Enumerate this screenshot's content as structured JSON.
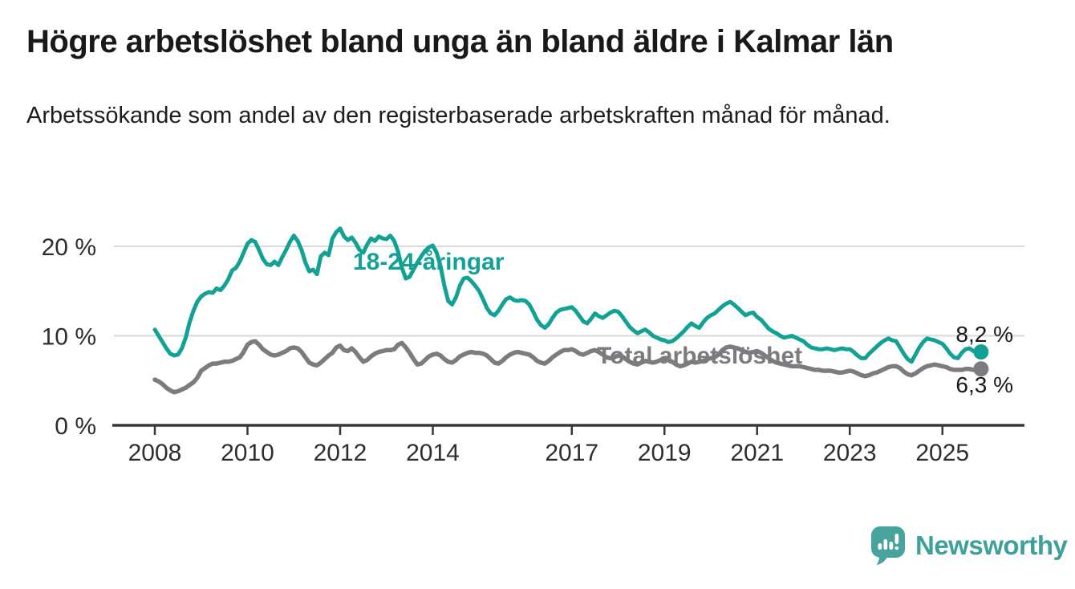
{
  "header": {
    "title": "Högre arbetslöshet bland unga än bland äldre i Kalmar län",
    "subtitle": "Arbetssökande som andel av den registerbaserade arbetskraften månad för månad."
  },
  "branding": {
    "logo_text": "Newsworthy",
    "logo_icon": "bar-chart-speech-bubble-icon",
    "brand_color": "#3da19a"
  },
  "chart_data": {
    "type": "line",
    "title": "Högre arbetslöshet bland unga än bland äldre i Kalmar län",
    "subtitle": "Arbetssökande som andel av den registerbaserade arbetskraften månad för månad.",
    "x_type": "monthly",
    "x_start": "2008-01",
    "x_end": "2025-11",
    "ylim": [
      0,
      22.5
    ],
    "grid": "horizontal",
    "legend_position": "inline-labels",
    "y_ticks": [
      {
        "value": 0,
        "label": "0 %"
      },
      {
        "value": 10,
        "label": "10 %"
      },
      {
        "value": 20,
        "label": "20 %"
      }
    ],
    "x_ticks": [
      {
        "value": 2008,
        "label": "2008"
      },
      {
        "value": 2010,
        "label": "2010"
      },
      {
        "value": 2012,
        "label": "2012"
      },
      {
        "value": 2014,
        "label": "2014"
      },
      {
        "value": 2017,
        "label": "2017"
      },
      {
        "value": 2019,
        "label": "2019"
      },
      {
        "value": 2021,
        "label": "2021"
      },
      {
        "value": 2023,
        "label": "2023"
      },
      {
        "value": 2025,
        "label": "2025"
      }
    ],
    "series": [
      {
        "name": "18-24-åringar",
        "color": "#12a195",
        "end_value": 8.2,
        "end_value_label": "8,2 %",
        "values": [
          10.7,
          10.0,
          9.3,
          8.6,
          8.0,
          7.8,
          7.9,
          8.6,
          9.8,
          11.5,
          12.8,
          13.8,
          14.4,
          14.7,
          14.9,
          14.8,
          15.3,
          15.1,
          15.6,
          16.3,
          17.3,
          17.6,
          18.3,
          19.3,
          20.3,
          20.7,
          20.5,
          19.6,
          18.6,
          18.0,
          17.9,
          18.3,
          17.9,
          18.8,
          19.6,
          20.5,
          21.2,
          20.6,
          19.6,
          18.2,
          17.2,
          17.4,
          16.9,
          18.9,
          19.3,
          19.0,
          20.9,
          21.6,
          22.0,
          21.1,
          20.7,
          21.0,
          20.4,
          19.6,
          19.3,
          20.2,
          20.9,
          20.6,
          21.1,
          20.9,
          20.8,
          21.2,
          20.6,
          19.4,
          17.6,
          16.4,
          16.6,
          17.4,
          18.2,
          18.9,
          19.5,
          19.9,
          20.1,
          19.3,
          17.8,
          15.6,
          13.9,
          13.5,
          14.3,
          15.6,
          16.4,
          16.5,
          16.1,
          15.6,
          15.0,
          14.1,
          13.1,
          12.5,
          12.3,
          12.8,
          13.5,
          14.1,
          14.3,
          14.0,
          13.9,
          14.0,
          13.9,
          13.5,
          12.7,
          11.8,
          11.2,
          10.9,
          11.3,
          12.0,
          12.6,
          12.9,
          13.0,
          13.1,
          13.2,
          12.8,
          12.2,
          11.6,
          11.4,
          11.9,
          12.5,
          12.2,
          12.0,
          12.3,
          12.6,
          12.8,
          12.7,
          12.2,
          11.6,
          11.0,
          10.6,
          10.3,
          10.5,
          10.7,
          10.4,
          10.0,
          9.8,
          9.6,
          9.5,
          9.3,
          9.4,
          9.7,
          10.1,
          10.5,
          11.0,
          11.4,
          11.1,
          10.9,
          11.5,
          12.0,
          12.3,
          12.5,
          12.9,
          13.3,
          13.6,
          13.8,
          13.5,
          13.1,
          12.7,
          12.3,
          12.5,
          12.6,
          12.1,
          11.8,
          11.3,
          10.8,
          10.5,
          10.3,
          10.0,
          9.8,
          9.9,
          10.0,
          9.8,
          9.6,
          9.4,
          9.0,
          8.7,
          8.6,
          8.5,
          8.5,
          8.6,
          8.5,
          8.4,
          8.5,
          8.6,
          8.5,
          8.5,
          8.2,
          7.8,
          7.5,
          7.5,
          8.0,
          8.4,
          8.8,
          9.2,
          9.5,
          9.7,
          9.5,
          9.4,
          8.7,
          8.0,
          7.4,
          7.1,
          7.9,
          8.7,
          9.3,
          9.7,
          9.6,
          9.5,
          9.3,
          9.1,
          8.6,
          8.0,
          7.6,
          7.5,
          8.1,
          8.5,
          8.6,
          8.3,
          8.4,
          8.2
        ]
      },
      {
        "name": "Total arbetslöshet",
        "color": "#7b7b80",
        "end_value": 6.3,
        "end_value_label": "6,3 %",
        "values": [
          5.1,
          4.9,
          4.6,
          4.2,
          3.9,
          3.7,
          3.8,
          4.0,
          4.2,
          4.5,
          4.8,
          5.3,
          6.1,
          6.4,
          6.7,
          6.9,
          6.9,
          7.0,
          7.1,
          7.1,
          7.2,
          7.4,
          7.6,
          8.2,
          9.0,
          9.3,
          9.4,
          9.0,
          8.5,
          8.2,
          7.9,
          7.8,
          7.9,
          8.1,
          8.3,
          8.6,
          8.7,
          8.6,
          8.2,
          7.6,
          7.0,
          6.8,
          6.7,
          7.0,
          7.4,
          7.8,
          8.1,
          8.7,
          8.9,
          8.4,
          8.3,
          8.6,
          8.2,
          7.6,
          7.1,
          7.3,
          7.7,
          8.0,
          8.2,
          8.3,
          8.4,
          8.4,
          8.5,
          9.0,
          9.2,
          8.7,
          8.1,
          7.4,
          6.8,
          6.9,
          7.3,
          7.7,
          7.9,
          8.0,
          7.8,
          7.4,
          7.1,
          7.0,
          7.3,
          7.7,
          7.9,
          8.1,
          8.2,
          8.1,
          8.1,
          8.0,
          7.8,
          7.4,
          7.0,
          6.9,
          7.2,
          7.6,
          7.9,
          8.1,
          8.2,
          8.1,
          8.0,
          7.9,
          7.6,
          7.2,
          7.0,
          6.9,
          7.2,
          7.6,
          7.9,
          8.2,
          8.4,
          8.4,
          8.5,
          8.3,
          8.0,
          7.9,
          8.1,
          8.3,
          8.4,
          8.2,
          7.9,
          7.6,
          7.5,
          7.6,
          7.8,
          7.7,
          7.4,
          7.1,
          6.9,
          6.8,
          7.0,
          7.2,
          7.1,
          7.0,
          7.1,
          7.3,
          7.4,
          7.3,
          7.1,
          6.8,
          6.6,
          6.7,
          6.9,
          7.1,
          7.0,
          7.1,
          7.2,
          7.4,
          7.5,
          7.6,
          7.9,
          8.4,
          8.7,
          8.8,
          8.7,
          8.6,
          8.4,
          8.2,
          8.1,
          8.2,
          8.3,
          8.1,
          7.8,
          7.5,
          7.2,
          7.0,
          6.9,
          6.8,
          6.7,
          6.6,
          6.6,
          6.6,
          6.5,
          6.4,
          6.3,
          6.2,
          6.2,
          6.1,
          6.1,
          6.1,
          6.0,
          5.9,
          5.9,
          6.0,
          6.1,
          6.0,
          5.8,
          5.6,
          5.5,
          5.6,
          5.8,
          5.9,
          6.1,
          6.3,
          6.5,
          6.6,
          6.6,
          6.4,
          6.0,
          5.7,
          5.6,
          5.8,
          6.1,
          6.4,
          6.6,
          6.7,
          6.8,
          6.7,
          6.6,
          6.5,
          6.3,
          6.2,
          6.2,
          6.2,
          6.3,
          6.3,
          6.2,
          6.2,
          6.3
        ]
      }
    ]
  }
}
